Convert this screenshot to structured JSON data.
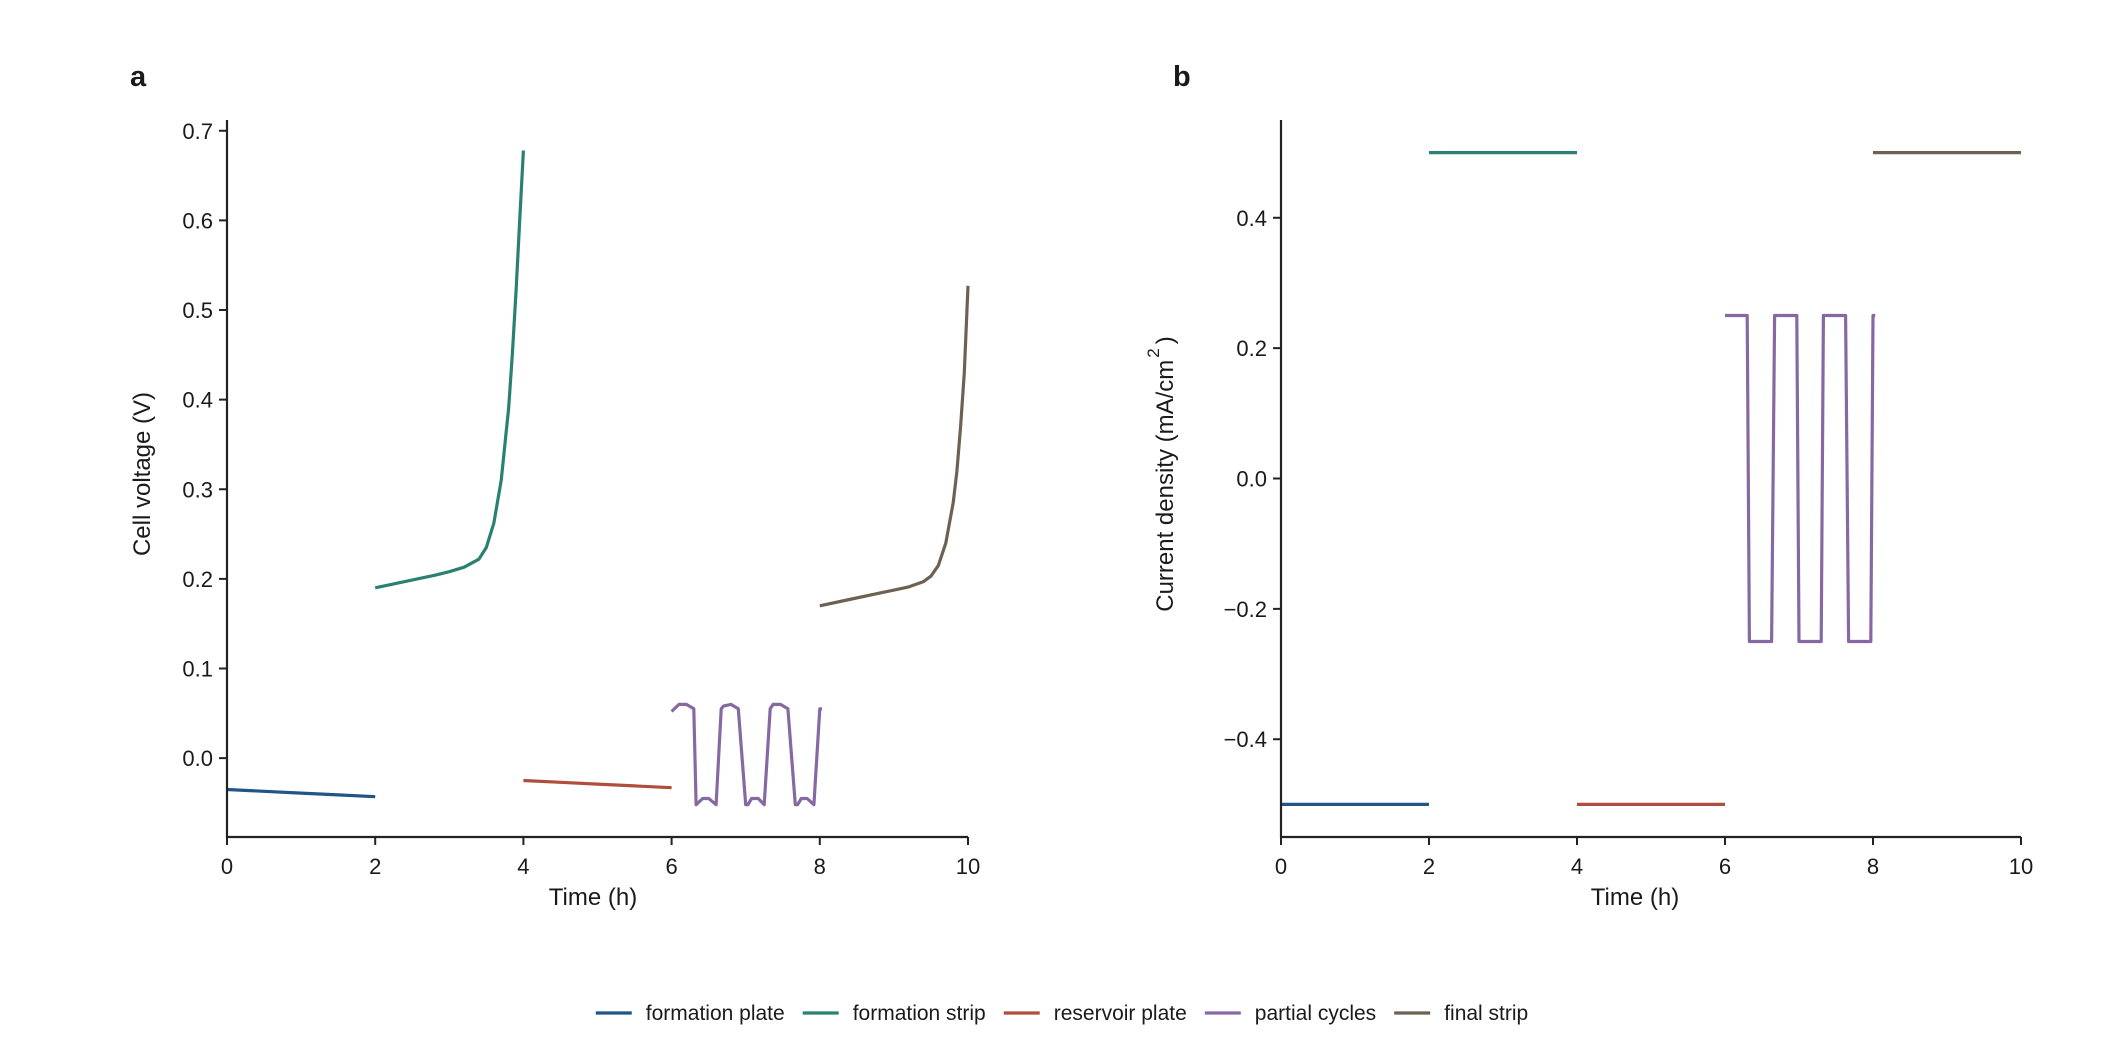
{
  "colors": {
    "formation plate": "#1f5685",
    "formation strip": "#2a8072",
    "reservoir plate": "#b04e3e",
    "partial cycles": "#8669a3",
    "final strip": "#6e6152"
  },
  "legend": {
    "placement": "bottom-center",
    "entries": [
      "formation plate",
      "formation strip",
      "reservoir plate",
      "partial cycles",
      "final strip"
    ]
  },
  "chart_data": [
    {
      "type": "line",
      "panel": "a",
      "title": "",
      "xlabel": "Time (h)",
      "ylabel": "Cell voltage (V)",
      "xlim": [
        0,
        10
      ],
      "ylim": [
        -0.088,
        0.712
      ],
      "xticks": [
        0,
        2,
        4,
        6,
        8,
        10
      ],
      "yticks": [
        0.0,
        0.1,
        0.2,
        0.3,
        0.4,
        0.5,
        0.6,
        0.7
      ],
      "ytick_labels": [
        "0.0",
        "0.1",
        "0.2",
        "0.3",
        "0.4",
        "0.5",
        "0.6",
        "0.7"
      ],
      "grid": false,
      "series": [
        {
          "name": "formation plate",
          "x": [
            0,
            0.5,
            1,
            1.5,
            2
          ],
          "y": [
            -0.035,
            -0.037,
            -0.039,
            -0.041,
            -0.043
          ]
        },
        {
          "name": "formation strip",
          "x": [
            2,
            2.4,
            2.8,
            3.0,
            3.2,
            3.4,
            3.5,
            3.6,
            3.7,
            3.8,
            3.85,
            3.9,
            3.95,
            4.0
          ],
          "y": [
            0.19,
            0.197,
            0.204,
            0.208,
            0.213,
            0.222,
            0.235,
            0.262,
            0.31,
            0.39,
            0.45,
            0.52,
            0.6,
            0.678
          ]
        },
        {
          "name": "reservoir plate",
          "x": [
            4,
            4.5,
            5,
            5.5,
            6
          ],
          "y": [
            -0.025,
            -0.027,
            -0.029,
            -0.031,
            -0.033
          ]
        },
        {
          "name": "partial cycles",
          "x": [
            6.0,
            6.1,
            6.2,
            6.3,
            6.33,
            6.42,
            6.5,
            6.6,
            6.67,
            6.7,
            6.8,
            6.9,
            7.0,
            7.03,
            7.08,
            7.17,
            7.25,
            7.33,
            7.37,
            7.47,
            7.57,
            7.67,
            7.7,
            7.75,
            7.83,
            7.92,
            8.0,
            8.03
          ],
          "y": [
            0.052,
            0.06,
            0.06,
            0.055,
            -0.052,
            -0.045,
            -0.045,
            -0.052,
            0.055,
            0.058,
            0.06,
            0.055,
            -0.052,
            -0.052,
            -0.045,
            -0.045,
            -0.052,
            0.055,
            0.06,
            0.06,
            0.055,
            -0.052,
            -0.052,
            -0.045,
            -0.045,
            -0.052,
            0.055,
            0.055
          ]
        },
        {
          "name": "final strip",
          "x": [
            8,
            8.4,
            8.8,
            9.2,
            9.4,
            9.5,
            9.6,
            9.7,
            9.8,
            9.85,
            9.9,
            9.95,
            10.0
          ],
          "y": [
            0.17,
            0.177,
            0.184,
            0.191,
            0.197,
            0.203,
            0.215,
            0.24,
            0.285,
            0.32,
            0.37,
            0.43,
            0.527
          ]
        }
      ]
    },
    {
      "type": "line",
      "panel": "b",
      "title": "",
      "xlabel": "Time (h)",
      "ylabel": "Current density (mA/cm",
      "ylabel_superscript": "2",
      "ylabel_close": ")",
      "xlim": [
        0,
        10
      ],
      "ylim": [
        -0.55,
        0.55
      ],
      "xticks": [
        0,
        2,
        4,
        6,
        8,
        10
      ],
      "yticks": [
        -0.4,
        -0.2,
        0.0,
        0.2,
        0.4
      ],
      "ytick_labels": [
        "−0.4",
        "−0.2",
        "0.0",
        "0.2",
        "0.4"
      ],
      "grid": false,
      "series": [
        {
          "name": "formation plate",
          "x": [
            0,
            2
          ],
          "y": [
            -0.5,
            -0.5
          ]
        },
        {
          "name": "formation strip",
          "x": [
            2,
            4
          ],
          "y": [
            0.5,
            0.5
          ]
        },
        {
          "name": "reservoir plate",
          "x": [
            4,
            6
          ],
          "y": [
            -0.5,
            -0.5
          ]
        },
        {
          "name": "partial cycles",
          "x": [
            6.0,
            6.3,
            6.33,
            6.63,
            6.67,
            6.97,
            7.0,
            7.3,
            7.33,
            7.63,
            7.67,
            7.97,
            8.0,
            8.03
          ],
          "y": [
            0.25,
            0.25,
            -0.25,
            -0.25,
            0.25,
            0.25,
            -0.25,
            -0.25,
            0.25,
            0.25,
            -0.25,
            -0.25,
            0.25,
            0.25
          ]
        },
        {
          "name": "final strip",
          "x": [
            8,
            10
          ],
          "y": [
            0.5,
            0.5
          ]
        }
      ]
    }
  ]
}
